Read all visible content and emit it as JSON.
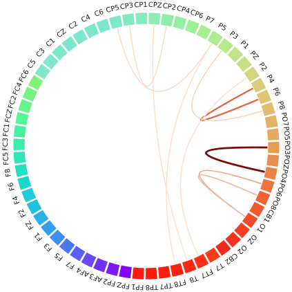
{
  "chart_data": {
    "type": "chord",
    "nodes": [
      "FP1",
      "FPZ",
      "FP2",
      "AF3",
      "AF4",
      "F7",
      "F5",
      "F3",
      "F1",
      "FZ",
      "F2",
      "F4",
      "F6",
      "F8",
      "FC5",
      "FC3",
      "FC1",
      "FCZ",
      "FC2",
      "FC4",
      "FC6",
      "C5",
      "C3",
      "C1",
      "CZ",
      "C2",
      "C4",
      "C6",
      "CP5",
      "CP3",
      "CP1",
      "CPZ",
      "CP2",
      "CP4",
      "CP6",
      "P7",
      "P5",
      "P3",
      "P1",
      "PZ",
      "P2",
      "P4",
      "P6",
      "P8",
      "PO7",
      "PO5",
      "PO3",
      "POZ",
      "PO4",
      "PO6",
      "PO8",
      "CB1",
      "O1",
      "OZ",
      "O2",
      "CB2",
      "T7",
      "FT7",
      "T8",
      "FT8",
      "TP7",
      "TP8"
    ],
    "node_colors": [
      "#ff1a0e",
      "#8a00ff",
      "#7f18ff",
      "#7230ff",
      "#6a48fe",
      "#5c60fb",
      "#4a76f7",
      "#3f8cf2",
      "#34a0ec",
      "#2ab1e5",
      "#22c0de",
      "#1ccdd5",
      "#1ad8cb",
      "#22e0c0",
      "#2ee6b6",
      "#3cecab",
      "#49f0a0",
      "#56f496",
      "#66f58c",
      "#74f582",
      "#81f478",
      "#7fe8c8",
      "#7ee6ca",
      "#7de6cc",
      "#7ce6ce",
      "#7ce6cf",
      "#7ce6cf",
      "#7ce6cf",
      "#7fe8c8",
      "#82e9c2",
      "#86ebbb",
      "#8aedb5",
      "#8eeea9",
      "#93ef9f",
      "#9ef096",
      "#a8ef8f",
      "#b0ec8c",
      "#b8ea8b",
      "#c2e488",
      "#cade84",
      "#d0d680",
      "#d6ce7c",
      "#dcc676",
      "#e0bc70",
      "#e4b266",
      "#e6a95e",
      "#e59c55",
      "#e49050",
      "#e88448",
      "#ec7440",
      "#f06238",
      "#f0582e",
      "#f14c2a",
      "#f24026",
      "#f43422",
      "#f6281e",
      "#fb3c19",
      "#fd3016",
      "#fe2713",
      "#ff2010",
      "#ff1b0e",
      "#ff1a0e"
    ],
    "links": [
      {
        "source": "PO3",
        "target": "PO4",
        "weight": 0.95,
        "color": "#7a0a0a"
      },
      {
        "source": "P4",
        "target": "P6",
        "weight": 0.7,
        "color": "#e8643a"
      },
      {
        "source": "PO6",
        "target": "O1",
        "weight": 0.45,
        "color": "#f3a888"
      },
      {
        "source": "PO8",
        "target": "O1",
        "weight": 0.4,
        "color": "#f5b89a"
      },
      {
        "source": "CP5",
        "target": "P5",
        "weight": 0.25,
        "color": "#fad9c8"
      },
      {
        "source": "CP3",
        "target": "CP2",
        "weight": 0.25,
        "color": "#fad9c8"
      },
      {
        "source": "P8",
        "target": "P3",
        "weight": 0.3,
        "color": "#fad2bf"
      },
      {
        "source": "P2",
        "target": "FT7",
        "weight": 0.25,
        "color": "#fbe0d2"
      },
      {
        "source": "CPZ",
        "target": "T8",
        "weight": 0.25,
        "color": "#fbe0d2"
      },
      {
        "source": "P5",
        "target": "FT8",
        "weight": 0.25,
        "color": "#fbe0d2"
      }
    ]
  }
}
